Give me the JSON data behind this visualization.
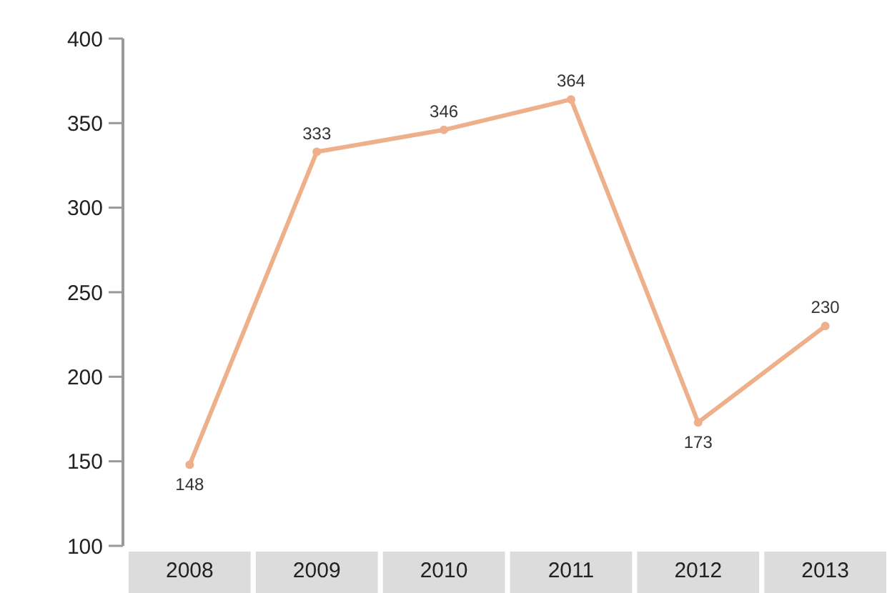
{
  "chart_data": {
    "type": "line",
    "categories": [
      "2008",
      "2009",
      "2010",
      "2011",
      "2012",
      "2013"
    ],
    "series": [
      {
        "color": "#eeb08a",
        "values": [
          148,
          333,
          346,
          364,
          173,
          230
        ]
      }
    ],
    "ylim": [
      100,
      400
    ],
    "yticks": [
      100,
      150,
      200,
      250,
      300,
      350,
      400
    ],
    "grid": false,
    "marker": "circle",
    "line_style": "solid",
    "data_labels": true
  }
}
